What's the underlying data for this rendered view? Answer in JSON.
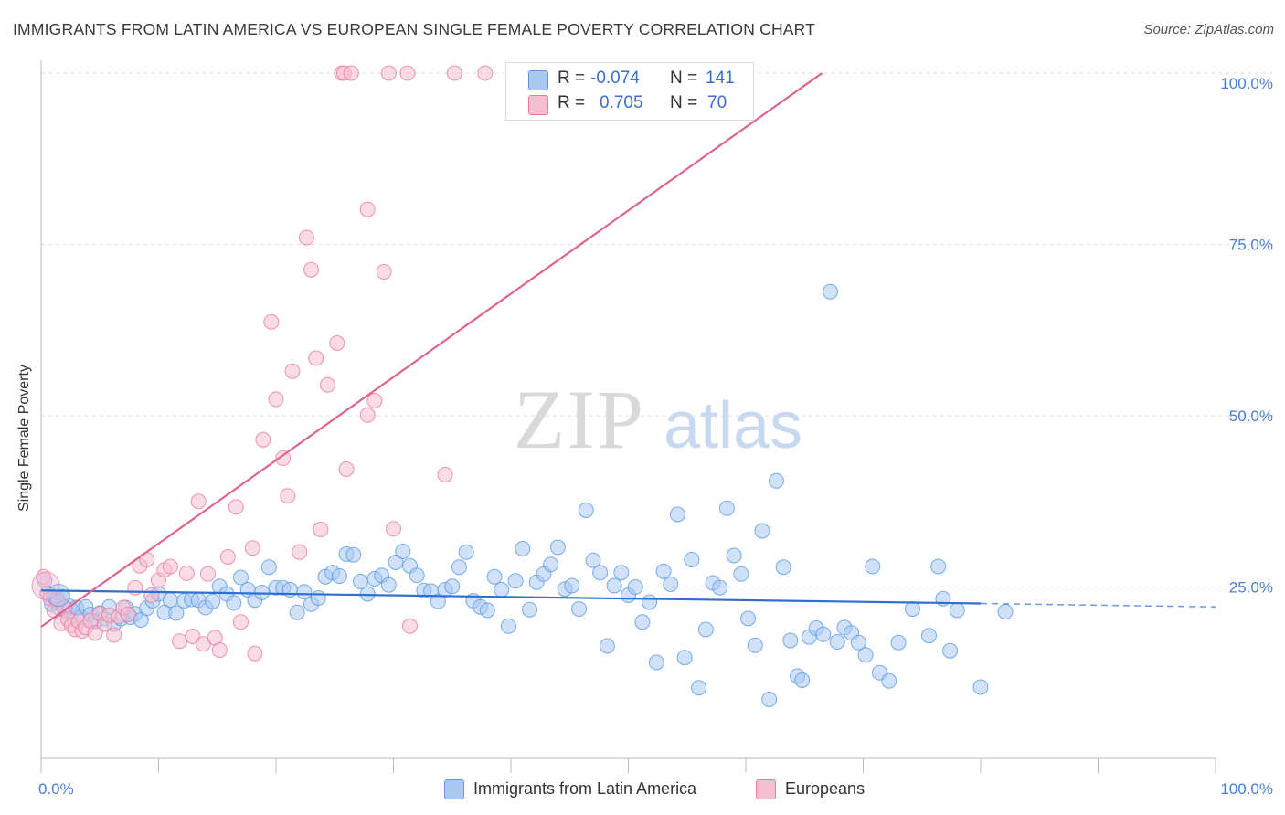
{
  "title": "IMMIGRANTS FROM LATIN AMERICA VS EUROPEAN SINGLE FEMALE POVERTY CORRELATION CHART",
  "source": "Source: ZipAtlas.com",
  "watermark": {
    "zip": "ZIP",
    "atlas": "atlas"
  },
  "colors": {
    "blue": "#5b9be0",
    "blue_fill": "#a9c9f2",
    "blue_line": "#2f6fd0",
    "pink": "#e87aa0",
    "pink_fill": "#f6bfd1",
    "pink_line": "#e0648f",
    "axis_text": "#4a7fd0",
    "grid": "#dddddd"
  },
  "legend": {
    "rows": [
      {
        "r_label": "R =",
        "r_value": "-0.074",
        "n_label": "N =",
        "n_value": "141",
        "color": "blue"
      },
      {
        "r_label": "R =",
        "r_value": "0.705",
        "n_label": "N =",
        "n_value": "70",
        "color": "pink"
      }
    ]
  },
  "bottom_legend": [
    {
      "label": "Immigrants from Latin America",
      "color": "blue"
    },
    {
      "label": "Europeans",
      "color": "pink"
    }
  ],
  "chart_data": {
    "type": "scatter",
    "xlabel": "",
    "ylabel": "Single Female Poverty",
    "xlim": [
      0,
      100
    ],
    "ylim": [
      0,
      100
    ],
    "x_tick_labels": [
      "0.0%",
      "100.0%"
    ],
    "y_ticks": [
      25,
      50,
      75,
      100
    ],
    "y_tick_labels": [
      "25.0%",
      "50.0%",
      "75.0%",
      "100.0%"
    ],
    "grid": true,
    "legend_position": "top-center",
    "series": [
      {
        "name": "Immigrants from Latin America",
        "color": "blue",
        "trend": {
          "x": [
            0,
            80
          ],
          "y": [
            24.5,
            22.6
          ],
          "dashed_to": 100,
          "dashed_y": 22.1
        },
        "points": [
          [
            0.3,
            26.0
          ],
          [
            0.6,
            24.1
          ],
          [
            0.9,
            22.5
          ],
          [
            1.2,
            23.2
          ],
          [
            1.5,
            22.0
          ],
          [
            1.8,
            23.6
          ],
          [
            2.1,
            21.6
          ],
          [
            2.4,
            22.2
          ],
          [
            2.7,
            21.4
          ],
          [
            3.0,
            22.0
          ],
          [
            3.4,
            20.6
          ],
          [
            3.8,
            22.1
          ],
          [
            4.2,
            21.0
          ],
          [
            4.6,
            20.0
          ],
          [
            5.0,
            21.2
          ],
          [
            5.4,
            20.4
          ],
          [
            5.8,
            22.1
          ],
          [
            6.2,
            19.6
          ],
          [
            6.8,
            20.4
          ],
          [
            7.2,
            22.0
          ],
          [
            7.6,
            20.6
          ],
          [
            8.0,
            21.1
          ],
          [
            8.5,
            20.2
          ],
          [
            9.0,
            21.9
          ],
          [
            9.5,
            23.0
          ],
          [
            10.0,
            24.0
          ],
          [
            10.5,
            21.3
          ],
          [
            11.0,
            23.1
          ],
          [
            11.5,
            21.2
          ],
          [
            12.2,
            23.0
          ],
          [
            12.8,
            23.2
          ],
          [
            13.4,
            23.1
          ],
          [
            14.0,
            22.0
          ],
          [
            14.6,
            22.9
          ],
          [
            15.2,
            25.1
          ],
          [
            15.8,
            24.0
          ],
          [
            16.4,
            22.7
          ],
          [
            17.0,
            26.4
          ],
          [
            17.6,
            24.6
          ],
          [
            18.2,
            23.1
          ],
          [
            18.8,
            24.2
          ],
          [
            19.4,
            27.9
          ],
          [
            20.0,
            24.9
          ],
          [
            20.6,
            24.9
          ],
          [
            21.2,
            24.6
          ],
          [
            21.8,
            21.3
          ],
          [
            22.4,
            24.3
          ],
          [
            23.0,
            22.5
          ],
          [
            23.6,
            23.4
          ],
          [
            24.2,
            26.5
          ],
          [
            24.8,
            27.1
          ],
          [
            25.4,
            26.6
          ],
          [
            26.0,
            29.8
          ],
          [
            26.6,
            29.7
          ],
          [
            27.2,
            25.8
          ],
          [
            27.8,
            24.0
          ],
          [
            28.4,
            26.2
          ],
          [
            29.0,
            26.7
          ],
          [
            29.6,
            25.3
          ],
          [
            30.2,
            28.6
          ],
          [
            30.8,
            30.2
          ],
          [
            31.4,
            28.1
          ],
          [
            32.0,
            26.7
          ],
          [
            32.6,
            24.5
          ],
          [
            33.2,
            24.4
          ],
          [
            33.8,
            22.9
          ],
          [
            34.4,
            24.6
          ],
          [
            35.0,
            25.1
          ],
          [
            35.6,
            27.9
          ],
          [
            36.2,
            30.1
          ],
          [
            36.8,
            23.0
          ],
          [
            37.4,
            22.1
          ],
          [
            38.0,
            21.6
          ],
          [
            38.6,
            26.5
          ],
          [
            39.2,
            24.6
          ],
          [
            39.8,
            19.3
          ],
          [
            40.4,
            25.9
          ],
          [
            41.0,
            30.6
          ],
          [
            41.6,
            21.7
          ],
          [
            42.2,
            25.7
          ],
          [
            42.8,
            26.9
          ],
          [
            43.4,
            28.3
          ],
          [
            44.0,
            30.8
          ],
          [
            44.6,
            24.7
          ],
          [
            45.2,
            25.2
          ],
          [
            45.8,
            21.8
          ],
          [
            46.4,
            36.2
          ],
          [
            47.0,
            28.9
          ],
          [
            47.6,
            27.1
          ],
          [
            48.2,
            16.4
          ],
          [
            48.8,
            25.2
          ],
          [
            49.4,
            27.1
          ],
          [
            50.0,
            23.8
          ],
          [
            50.6,
            25.0
          ],
          [
            51.2,
            19.9
          ],
          [
            51.8,
            22.8
          ],
          [
            52.4,
            14.0
          ],
          [
            53.0,
            27.3
          ],
          [
            53.6,
            25.4
          ],
          [
            54.2,
            35.6
          ],
          [
            54.8,
            14.7
          ],
          [
            55.4,
            29.0
          ],
          [
            56.0,
            10.3
          ],
          [
            56.6,
            18.8
          ],
          [
            57.2,
            25.6
          ],
          [
            57.8,
            24.9
          ],
          [
            58.4,
            36.5
          ],
          [
            59.0,
            29.6
          ],
          [
            59.6,
            26.9
          ],
          [
            60.2,
            20.4
          ],
          [
            60.8,
            16.5
          ],
          [
            61.4,
            33.2
          ],
          [
            62.0,
            8.6
          ],
          [
            62.6,
            40.5
          ],
          [
            63.2,
            27.9
          ],
          [
            63.8,
            17.2
          ],
          [
            64.4,
            12.0
          ],
          [
            64.8,
            11.4
          ],
          [
            65.4,
            17.7
          ],
          [
            66.0,
            19.0
          ],
          [
            66.6,
            18.1
          ],
          [
            67.2,
            68.1
          ],
          [
            67.8,
            17.0
          ],
          [
            68.4,
            19.1
          ],
          [
            69.0,
            18.3
          ],
          [
            69.6,
            16.9
          ],
          [
            70.2,
            15.1
          ],
          [
            70.8,
            28.0
          ],
          [
            71.4,
            12.5
          ],
          [
            72.2,
            11.3
          ],
          [
            73.0,
            16.9
          ],
          [
            74.2,
            21.8
          ],
          [
            75.6,
            17.9
          ],
          [
            76.4,
            28.0
          ],
          [
            76.8,
            23.3
          ],
          [
            77.4,
            15.7
          ],
          [
            78.0,
            21.6
          ],
          [
            80.0,
            10.4
          ],
          [
            82.1,
            21.4
          ],
          [
            0.8,
            23.8
          ],
          [
            1.4,
            22.8
          ]
        ]
      },
      {
        "name": "Europeans",
        "color": "pink",
        "trend": {
          "x": [
            0,
            66.5
          ],
          "y": [
            19.2,
            100
          ]
        },
        "points": [
          [
            0.2,
            26.5
          ],
          [
            0.5,
            24.1
          ],
          [
            0.8,
            23.3
          ],
          [
            1.1,
            21.6
          ],
          [
            1.4,
            23.2
          ],
          [
            1.7,
            19.7
          ],
          [
            2.0,
            22.0
          ],
          [
            2.3,
            20.3
          ],
          [
            2.6,
            19.4
          ],
          [
            2.9,
            18.8
          ],
          [
            3.2,
            20.0
          ],
          [
            3.5,
            18.6
          ],
          [
            3.8,
            19.1
          ],
          [
            4.2,
            20.1
          ],
          [
            4.6,
            18.3
          ],
          [
            5.0,
            21.1
          ],
          [
            5.4,
            19.6
          ],
          [
            5.8,
            20.9
          ],
          [
            6.2,
            18.0
          ],
          [
            6.6,
            20.7
          ],
          [
            7.0,
            22.0
          ],
          [
            7.4,
            21.0
          ],
          [
            8.0,
            24.9
          ],
          [
            8.4,
            28.1
          ],
          [
            9.0,
            29.0
          ],
          [
            9.4,
            23.8
          ],
          [
            10.0,
            26.0
          ],
          [
            10.5,
            27.5
          ],
          [
            11.0,
            28.0
          ],
          [
            11.8,
            17.1
          ],
          [
            12.4,
            27.0
          ],
          [
            12.9,
            17.8
          ],
          [
            13.4,
            37.5
          ],
          [
            13.8,
            16.7
          ],
          [
            14.2,
            26.9
          ],
          [
            14.8,
            17.6
          ],
          [
            15.2,
            15.8
          ],
          [
            15.9,
            29.4
          ],
          [
            16.6,
            36.7
          ],
          [
            17.0,
            19.9
          ],
          [
            18.0,
            30.7
          ],
          [
            18.2,
            15.3
          ],
          [
            18.9,
            46.5
          ],
          [
            19.6,
            63.7
          ],
          [
            20.0,
            52.4
          ],
          [
            20.6,
            43.8
          ],
          [
            21.0,
            38.3
          ],
          [
            21.4,
            56.5
          ],
          [
            22.0,
            30.1
          ],
          [
            22.6,
            76.0
          ],
          [
            23.0,
            71.3
          ],
          [
            23.4,
            58.4
          ],
          [
            23.8,
            33.4
          ],
          [
            24.4,
            54.5
          ],
          [
            25.2,
            60.6
          ],
          [
            25.6,
            100.0
          ],
          [
            25.8,
            100.0
          ],
          [
            26.0,
            42.2
          ],
          [
            26.4,
            100.0
          ],
          [
            27.8,
            50.1
          ],
          [
            27.8,
            80.1
          ],
          [
            28.4,
            52.2
          ],
          [
            29.2,
            71.0
          ],
          [
            29.6,
            100.0
          ],
          [
            30.0,
            33.5
          ],
          [
            31.2,
            100.0
          ],
          [
            31.4,
            19.3
          ],
          [
            34.4,
            41.4
          ],
          [
            35.2,
            100.0
          ],
          [
            37.8,
            100.0
          ]
        ]
      }
    ]
  }
}
